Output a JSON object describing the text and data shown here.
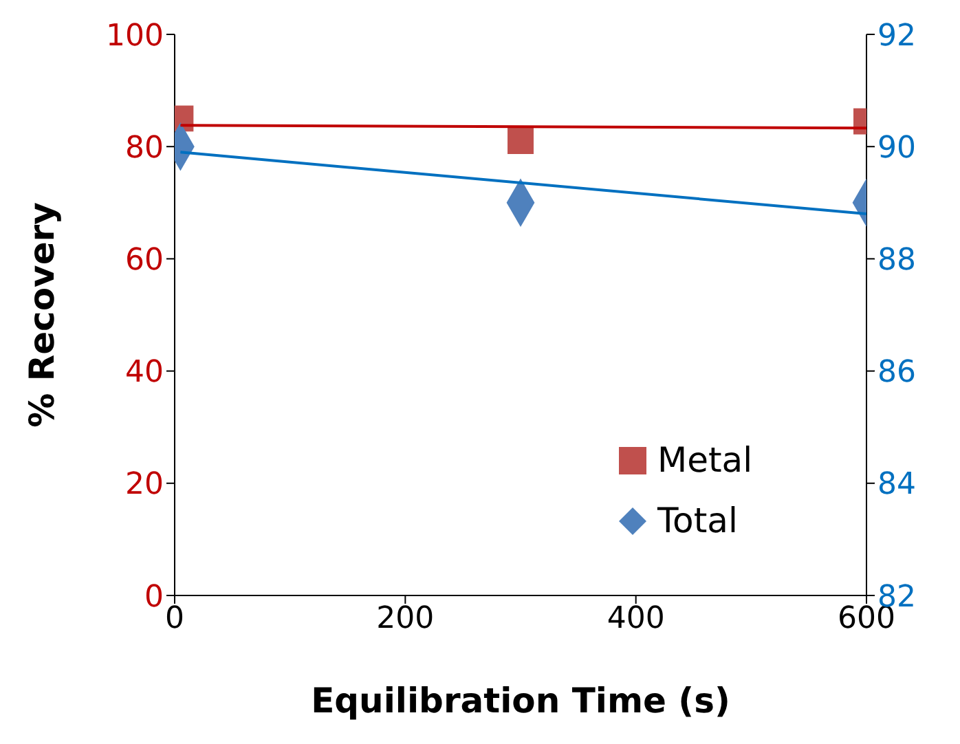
{
  "chart_data": {
    "type": "scatter",
    "xlabel": "Equilibration Time (s)",
    "ylabel": "% Recovery",
    "xlim": [
      0,
      600
    ],
    "xticks": [
      0,
      200,
      400,
      600
    ],
    "ylim": [
      0,
      100
    ],
    "yticks": [
      0,
      20,
      40,
      60,
      80,
      100
    ],
    "y2lim": [
      82,
      92
    ],
    "y2ticks": [
      82,
      84,
      86,
      88,
      90,
      92
    ],
    "grid": false,
    "legend": "bottom right",
    "series": [
      {
        "name": "Metal",
        "type": "scatter",
        "marker": "square",
        "color": "#c0504d",
        "x": [
          5,
          300,
          600
        ],
        "values": [
          85,
          81,
          84.5
        ]
      },
      {
        "name": "Total",
        "type": "scatter",
        "marker": "diamond",
        "axis": "y2",
        "color": "#4f81bd",
        "x": [
          5,
          300,
          600
        ],
        "values": [
          90,
          89,
          89
        ]
      },
      {
        "type": "line",
        "color": "#c00000",
        "x": [
          5,
          600
        ],
        "values": [
          83.8,
          83.3
        ]
      },
      {
        "type": "line",
        "axis": "y2",
        "color": "#0070c0",
        "x": [
          5,
          600
        ],
        "values": [
          89.9,
          88.8
        ]
      }
    ]
  }
}
